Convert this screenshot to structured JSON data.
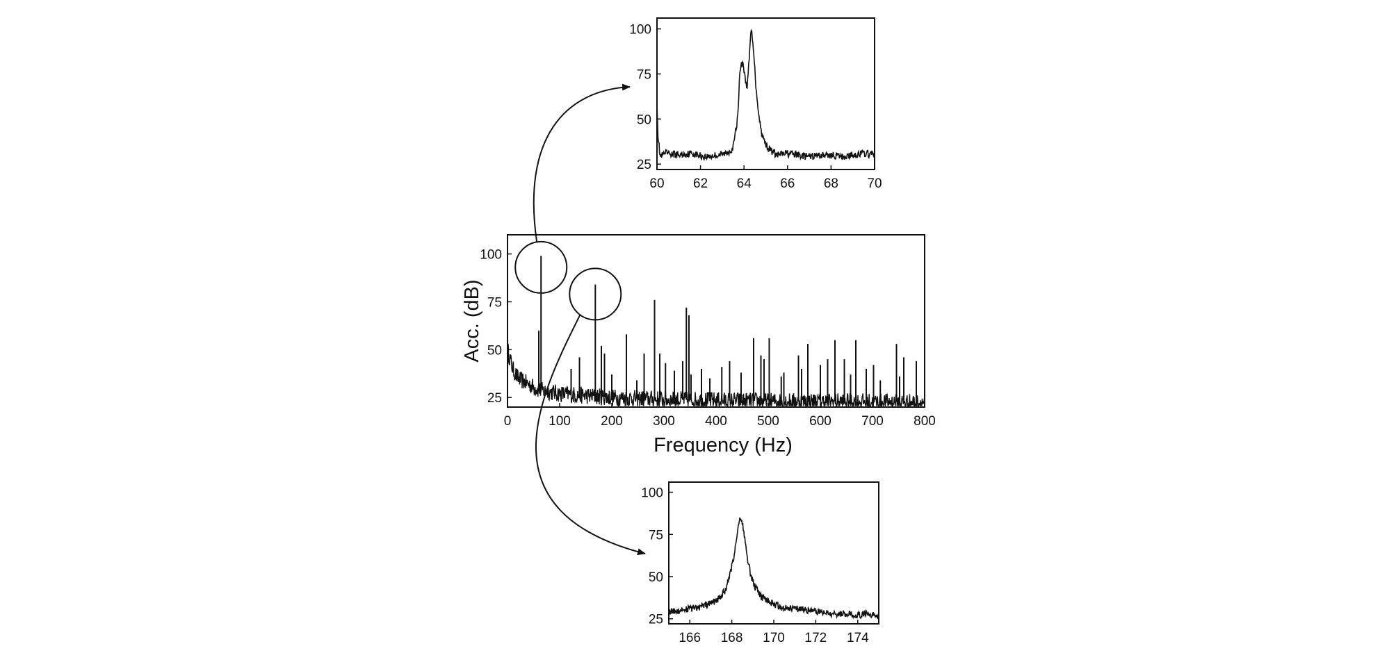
{
  "chart_data": [
    {
      "id": "main",
      "type": "line",
      "xlabel": "Frequency (Hz)",
      "ylabel": "Acc. (dB)",
      "xlim": [
        0,
        800
      ],
      "ylim": [
        20,
        110
      ],
      "xticks": [
        0,
        100,
        200,
        300,
        400,
        500,
        600,
        700,
        800
      ],
      "yticks": [
        25,
        50,
        75,
        100
      ],
      "grid": false,
      "noise_floor_db": [
        [
          0,
          50
        ],
        [
          10,
          40
        ],
        [
          20,
          35
        ],
        [
          40,
          32
        ],
        [
          60,
          29
        ],
        [
          100,
          27
        ],
        [
          200,
          25
        ],
        [
          300,
          24
        ],
        [
          400,
          23.5
        ],
        [
          500,
          23
        ],
        [
          600,
          23
        ],
        [
          800,
          22.5
        ]
      ],
      "peaks": [
        [
          64.3,
          99
        ],
        [
          60,
          60
        ],
        [
          122,
          40
        ],
        [
          138,
          46
        ],
        [
          168.4,
          84
        ],
        [
          180,
          52
        ],
        [
          186,
          48
        ],
        [
          200,
          37
        ],
        [
          228,
          58
        ],
        [
          248,
          34
        ],
        [
          262,
          48
        ],
        [
          282,
          76
        ],
        [
          292,
          48
        ],
        [
          303,
          43
        ],
        [
          320,
          39
        ],
        [
          336,
          44
        ],
        [
          343,
          72
        ],
        [
          348,
          68
        ],
        [
          352,
          37
        ],
        [
          372,
          40
        ],
        [
          388,
          35
        ],
        [
          411,
          41
        ],
        [
          426,
          44
        ],
        [
          448,
          38
        ],
        [
          472,
          56
        ],
        [
          486,
          47
        ],
        [
          492,
          45
        ],
        [
          502,
          56
        ],
        [
          525,
          36
        ],
        [
          530,
          38
        ],
        [
          558,
          47
        ],
        [
          564,
          40
        ],
        [
          576,
          53
        ],
        [
          600,
          42
        ],
        [
          614,
          45
        ],
        [
          628,
          55
        ],
        [
          646,
          45
        ],
        [
          658,
          37
        ],
        [
          668,
          55
        ],
        [
          688,
          40
        ],
        [
          702,
          42
        ],
        [
          715,
          34
        ],
        [
          746,
          53
        ],
        [
          752,
          36
        ],
        [
          760,
          46
        ],
        [
          784,
          44
        ]
      ],
      "annotations": [
        {
          "type": "circle",
          "center": [
            64.3,
            93
          ],
          "target_inset": "top"
        },
        {
          "type": "circle",
          "center": [
            168.4,
            79
          ],
          "target_inset": "bottom"
        }
      ]
    },
    {
      "id": "top-inset",
      "type": "line",
      "xlim": [
        60,
        70
      ],
      "ylim": [
        22,
        106
      ],
      "xticks": [
        60,
        62,
        64,
        66,
        68,
        70
      ],
      "yticks": [
        25,
        50,
        75,
        100
      ],
      "grid": false,
      "x": [
        60,
        60.05,
        60.15,
        60.4,
        61,
        61.6,
        62.2,
        62.8,
        63.2,
        63.5,
        63.7,
        63.82,
        63.95,
        64.05,
        64.15,
        64.25,
        64.32,
        64.42,
        64.55,
        64.7,
        64.85,
        65.1,
        65.5,
        66,
        66.5,
        67,
        67.5,
        68,
        68.5,
        69,
        69.5,
        70
      ],
      "y": [
        60,
        40,
        29,
        31,
        30,
        31,
        29,
        30,
        31,
        34,
        50,
        78,
        82,
        72,
        68,
        85,
        100,
        92,
        68,
        50,
        40,
        34,
        30,
        31,
        30,
        29,
        30,
        30,
        29,
        30,
        31,
        30
      ]
    },
    {
      "id": "bottom-inset",
      "type": "line",
      "xlim": [
        165,
        175
      ],
      "ylim": [
        22,
        106
      ],
      "xticks": [
        166,
        168,
        170,
        172,
        174
      ],
      "yticks": [
        25,
        50,
        75,
        100
      ],
      "grid": false,
      "x": [
        165,
        165.5,
        166,
        166.5,
        167,
        167.4,
        167.7,
        167.9,
        168.1,
        168.25,
        168.4,
        168.55,
        168.7,
        168.9,
        169.1,
        169.4,
        169.8,
        170.3,
        171,
        171.6,
        172.2,
        172.8,
        173.4,
        174,
        174.5,
        175
      ],
      "y": [
        29,
        30,
        31,
        32,
        34,
        37,
        42,
        50,
        62,
        75,
        86,
        79,
        64,
        51,
        44,
        38,
        35,
        32,
        31,
        30,
        29,
        28,
        28,
        27,
        28,
        27
      ]
    }
  ]
}
